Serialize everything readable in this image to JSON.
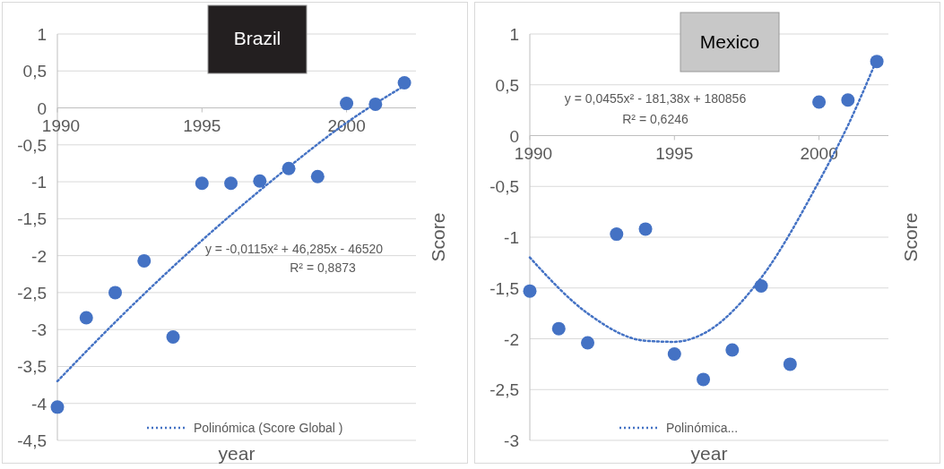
{
  "chart_data": [
    {
      "type": "scatter",
      "title": "Brazil",
      "xlabel": "year",
      "ylabel": "Score",
      "xlim": [
        1990,
        2002.4
      ],
      "xticks": [
        1990,
        1995,
        2000
      ],
      "ylim": [
        -4.5,
        1
      ],
      "yticks": [
        {
          "value": -4.5,
          "label": "-4,5"
        },
        -4,
        {
          "value": -3.5,
          "label": "-3,5"
        },
        -3,
        {
          "value": -2.5,
          "label": "-2,5"
        },
        -2,
        {
          "value": -1.5,
          "label": "-1,5"
        },
        -1,
        {
          "value": -0.5,
          "label": "-0,5"
        },
        0,
        {
          "value": 0.5,
          "label": "0,5"
        },
        1
      ],
      "grid": "y",
      "legend": "bottom",
      "annotations": [
        "y = -0,0115x² + 46,285x - 46520",
        "R² = 0,8873"
      ],
      "series": [
        {
          "color": "#4472c4",
          "marker": "circle",
          "x": [
            1990,
            1991,
            1992,
            1993,
            1994,
            1995,
            1996,
            1997,
            1998,
            1999,
            2000,
            2001,
            2002
          ],
          "values": [
            -4.05,
            -2.84,
            -2.5,
            -2.07,
            -3.1,
            -1.02,
            -1.02,
            -0.99,
            -0.82,
            -0.93,
            0.06,
            0.05,
            0.34
          ]
        },
        {
          "type": "line",
          "name": "Polinómica (Score Global )",
          "color": "#4472c4",
          "line_style": "dotted",
          "x": [
            1990,
            1992,
            1994,
            1996,
            1998,
            2000,
            2002
          ],
          "values": [
            -3.7,
            -2.9,
            -2.15,
            -1.45,
            -0.8,
            -0.2,
            0.3
          ]
        }
      ]
    },
    {
      "type": "scatter",
      "title": "Mexico",
      "xlabel": "year",
      "ylabel": "Score",
      "xlim": [
        1990,
        2002.4
      ],
      "xticks": [
        1990,
        1995,
        2000
      ],
      "ylim": [
        -3,
        1
      ],
      "yticks": [
        -3,
        {
          "value": -2.5,
          "label": "-2,5"
        },
        -2,
        {
          "value": -1.5,
          "label": "-1,5"
        },
        -1,
        {
          "value": -0.5,
          "label": "-0,5"
        },
        0,
        {
          "value": 0.5,
          "label": "0,5"
        },
        1
      ],
      "grid": "y",
      "legend": "bottom",
      "annotations": [
        "y = 0,0455x² - 181,38x + 180856",
        "R² = 0,6246"
      ],
      "series": [
        {
          "color": "#4472c4",
          "marker": "circle",
          "x": [
            1990,
            1991,
            1992,
            1993,
            1994,
            1995,
            1996,
            1997,
            1998,
            1999,
            2000,
            2001,
            2002
          ],
          "values": [
            -1.53,
            -1.9,
            -2.04,
            -0.97,
            -0.92,
            -2.15,
            -2.4,
            -2.11,
            -1.48,
            -2.25,
            0.33,
            0.35,
            0.73
          ]
        },
        {
          "type": "line",
          "name": "Polinómica...",
          "color": "#4472c4",
          "line_style": "dotted",
          "x": [
            1990,
            1992,
            1994,
            1995,
            1996,
            1998,
            2000,
            2001,
            2002
          ],
          "values": [
            -1.2,
            -1.75,
            -2.02,
            -2.03,
            -1.95,
            -1.4,
            -0.45,
            0.1,
            0.75
          ]
        }
      ]
    }
  ]
}
